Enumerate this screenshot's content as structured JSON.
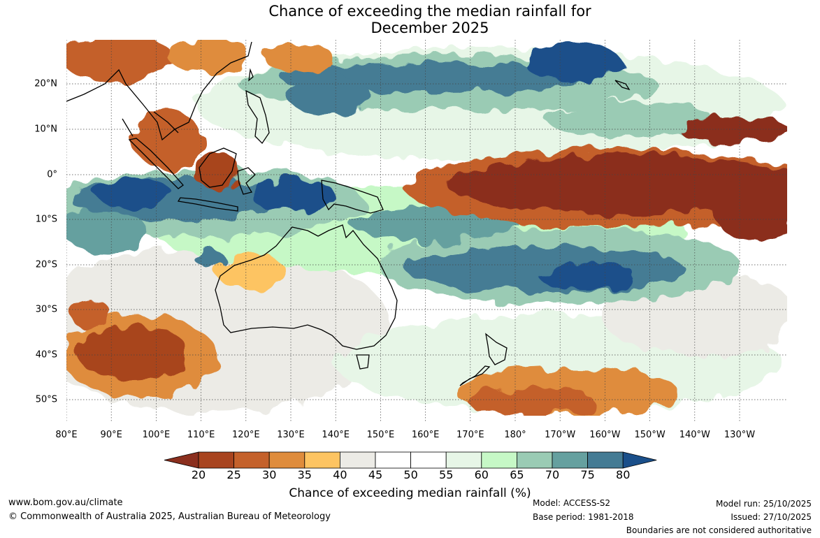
{
  "title": {
    "line1": "Chance of exceeding the median rainfall for",
    "line2": "December 2025"
  },
  "map": {
    "lon_labels": [
      "80°E",
      "90°E",
      "100°E",
      "110°E",
      "120°E",
      "130°E",
      "140°E",
      "150°E",
      "160°E",
      "170°E",
      "180°",
      "170°W",
      "160°W",
      "150°W",
      "140°W",
      "130°W"
    ],
    "lat_labels": [
      "20°N",
      "10°N",
      "0°",
      "10°S",
      "20°S",
      "30°S",
      "40°S",
      "50°S"
    ],
    "lon_range": [
      80,
      238
    ],
    "lat_range": [
      -55,
      30
    ]
  },
  "colorbar": {
    "ticks": [
      "20",
      "25",
      "30",
      "35",
      "40",
      "45",
      "50",
      "55",
      "60",
      "65",
      "70",
      "75",
      "80"
    ],
    "colors": [
      "#8b2f1e",
      "#a8441f",
      "#c4612b",
      "#df8c3c",
      "#fdc462",
      "#ecebe6",
      "#ffffff",
      "#ffffff",
      "#e7f6e7",
      "#c6f8c6",
      "#9acbb4",
      "#65a09f",
      "#447b94",
      "#1a4f8a"
    ],
    "label": "Chance of exceeding median rainfall (%)"
  },
  "footer": {
    "website": "www.bom.gov.au/climate",
    "copyright": "© Commonwealth of Australia 2025, Australian Bureau of Meteorology",
    "model": "Model: ACCESS-S2",
    "base_period": "Base period: 1981-2018",
    "model_run": "Model run: 25/10/2025",
    "issued": "Issued: 27/10/2025",
    "disclaimer": "Boundaries are not considered authoritative"
  }
}
